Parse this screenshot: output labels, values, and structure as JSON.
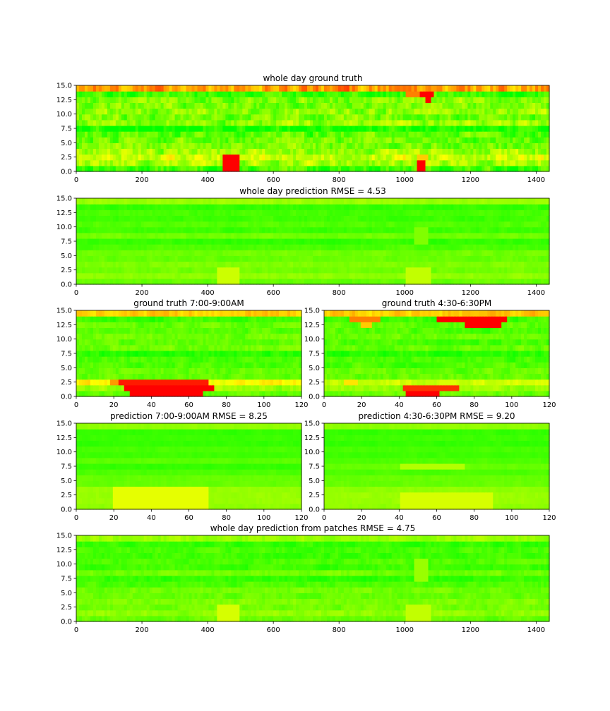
{
  "figure": {
    "background": "#ffffff"
  },
  "colormap": {
    "low": "#00ff00",
    "mid": "#ffff00",
    "high": "#ff0000"
  },
  "chart_data": [
    {
      "type": "heatmap",
      "title": "whole day ground truth",
      "xlim": [
        0,
        1440
      ],
      "ylim": [
        0,
        15
      ],
      "xticks": [
        "0",
        "200",
        "400",
        "600",
        "800",
        "1000",
        "1200",
        "1400"
      ],
      "yticks": [
        "0.0",
        "2.5",
        "5.0",
        "7.5",
        "10.0",
        "12.5",
        "15.0"
      ],
      "rows": 15,
      "base": [
        0.12,
        0.32,
        0.4,
        0.32,
        0.22,
        0.2,
        0.18,
        0.05,
        0.28,
        0.22,
        0.28,
        0.22,
        0.25,
        0.12,
        0.7,
        0.12
      ],
      "noise": 0.22,
      "hotspots": [
        {
          "x": [
            450,
            495
          ],
          "y": [
            0,
            3
          ],
          "v": 1.0
        },
        {
          "x": [
            1040,
            1060
          ],
          "y": [
            0,
            2
          ],
          "v": 1.0
        },
        {
          "x": [
            1035,
            1075
          ],
          "y": [
            2,
            3
          ],
          "v": 0.6
        },
        {
          "x": [
            1000,
            1080
          ],
          "y": [
            13,
            14
          ],
          "v": 0.75
        },
        {
          "x": [
            1045,
            1090
          ],
          "y": [
            13,
            14
          ],
          "v": 1.0
        },
        {
          "x": [
            1060,
            1080
          ],
          "y": [
            12,
            13
          ],
          "v": 1.0
        }
      ]
    },
    {
      "type": "heatmap",
      "title": "whole day prediction RMSE = 4.53",
      "xlim": [
        0,
        1440
      ],
      "ylim": [
        0,
        15
      ],
      "xticks": [
        "0",
        "200",
        "400",
        "600",
        "800",
        "1000",
        "1200",
        "1400"
      ],
      "yticks": [
        "0.0",
        "2.5",
        "5.0",
        "7.5",
        "10.0",
        "12.5",
        "15.0"
      ],
      "rows": 15,
      "base": [
        0.2,
        0.28,
        0.22,
        0.25,
        0.2,
        0.22,
        0.15,
        0.1,
        0.22,
        0.12,
        0.16,
        0.12,
        0.14,
        0.1,
        0.3,
        0.15
      ],
      "noise": 0.05,
      "hotspots": [
        {
          "x": [
            430,
            500
          ],
          "y": [
            0,
            3
          ],
          "v": 0.4
        },
        {
          "x": [
            1000,
            1080
          ],
          "y": [
            0,
            3
          ],
          "v": 0.38
        },
        {
          "x": [
            1030,
            1070
          ],
          "y": [
            7,
            10
          ],
          "v": 0.25
        }
      ]
    },
    {
      "type": "heatmap",
      "title": "ground truth 7:00-9:00AM",
      "xlim": [
        0,
        120
      ],
      "ylim": [
        0,
        15
      ],
      "xticks": [
        "0",
        "20",
        "40",
        "60",
        "80",
        "100",
        "120"
      ],
      "yticks": [
        "0.0",
        "2.5",
        "5.0",
        "7.5",
        "10.0",
        "12.5",
        "15.0"
      ],
      "rows": 15,
      "base": [
        0.2,
        0.3,
        0.5,
        0.2,
        0.2,
        0.15,
        0.15,
        0.08,
        0.22,
        0.18,
        0.22,
        0.18,
        0.2,
        0.12,
        0.6,
        0.15
      ],
      "noise": 0.1,
      "hotspots": [
        {
          "x": [
            28,
            68
          ],
          "y": [
            0,
            1
          ],
          "v": 1.0
        },
        {
          "x": [
            26,
            74
          ],
          "y": [
            1,
            2
          ],
          "v": 1.0
        },
        {
          "x": [
            22,
            70
          ],
          "y": [
            2,
            3
          ],
          "v": 0.95
        },
        {
          "x": [
            18,
            26
          ],
          "y": [
            2,
            3
          ],
          "v": 0.7
        }
      ]
    },
    {
      "type": "heatmap",
      "title": "ground truth 4:30-6:30PM",
      "xlim": [
        0,
        120
      ],
      "ylim": [
        0,
        15
      ],
      "xticks": [
        "0",
        "20",
        "40",
        "60",
        "80",
        "100",
        "120"
      ],
      "yticks": [
        "0.0",
        "2.5",
        "5.0",
        "7.5",
        "10.0",
        "12.5",
        "15.0"
      ],
      "rows": 15,
      "base": [
        0.2,
        0.3,
        0.4,
        0.2,
        0.2,
        0.15,
        0.15,
        0.08,
        0.2,
        0.15,
        0.2,
        0.15,
        0.18,
        0.12,
        0.6,
        0.15
      ],
      "noise": 0.1,
      "hotspots": [
        {
          "x": [
            44,
            62
          ],
          "y": [
            0,
            1
          ],
          "v": 1.0
        },
        {
          "x": [
            42,
            72
          ],
          "y": [
            1,
            2
          ],
          "v": 0.9
        },
        {
          "x": [
            10,
            18
          ],
          "y": [
            2,
            3
          ],
          "v": 0.55
        },
        {
          "x": [
            60,
            98
          ],
          "y": [
            13,
            14
          ],
          "v": 1.0
        },
        {
          "x": [
            75,
            95
          ],
          "y": [
            12,
            13
          ],
          "v": 1.0
        },
        {
          "x": [
            14,
            30
          ],
          "y": [
            13,
            14
          ],
          "v": 0.75
        },
        {
          "x": [
            20,
            26
          ],
          "y": [
            12,
            13
          ],
          "v": 0.6
        }
      ]
    },
    {
      "type": "heatmap",
      "title": "prediction 7:00-9:00AM RMSE = 8.25",
      "xlim": [
        0,
        120
      ],
      "ylim": [
        0,
        15
      ],
      "xticks": [
        "0",
        "20",
        "40",
        "60",
        "80",
        "100",
        "120"
      ],
      "yticks": [
        "0.0",
        "2.5",
        "5.0",
        "7.5",
        "10.0",
        "12.5",
        "15.0"
      ],
      "rows": 15,
      "base": [
        0.28,
        0.3,
        0.3,
        0.3,
        0.2,
        0.2,
        0.15,
        0.1,
        0.18,
        0.12,
        0.14,
        0.1,
        0.12,
        0.1,
        0.28,
        0.15
      ],
      "noise": 0.03,
      "hotspots": [
        {
          "x": [
            20,
            70
          ],
          "y": [
            0,
            4
          ],
          "v": 0.45
        }
      ]
    },
    {
      "type": "heatmap",
      "title": "prediction 4:30-6:30PM RMSE = 9.20",
      "xlim": [
        0,
        120
      ],
      "ylim": [
        0,
        15
      ],
      "xticks": [
        "0",
        "20",
        "40",
        "60",
        "80",
        "100",
        "120"
      ],
      "yticks": [
        "0.0",
        "2.5",
        "5.0",
        "7.5",
        "10.0",
        "12.5",
        "15.0"
      ],
      "rows": 15,
      "base": [
        0.28,
        0.3,
        0.3,
        0.28,
        0.2,
        0.2,
        0.15,
        0.2,
        0.15,
        0.12,
        0.14,
        0.1,
        0.12,
        0.1,
        0.28,
        0.15
      ],
      "noise": 0.03,
      "hotspots": [
        {
          "x": [
            40,
            90
          ],
          "y": [
            0,
            3
          ],
          "v": 0.42
        },
        {
          "x": [
            40,
            75
          ],
          "y": [
            7,
            8
          ],
          "v": 0.35
        }
      ]
    },
    {
      "type": "heatmap",
      "title": "whole day prediction from patches RMSE = 4.75",
      "xlim": [
        0,
        1440
      ],
      "ylim": [
        0,
        15
      ],
      "xticks": [
        "0",
        "200",
        "400",
        "600",
        "800",
        "1000",
        "1200",
        "1400"
      ],
      "yticks": [
        "0.0",
        "2.5",
        "5.0",
        "7.5",
        "10.0",
        "12.5",
        "15.0"
      ],
      "rows": 15,
      "base": [
        0.2,
        0.28,
        0.22,
        0.25,
        0.2,
        0.22,
        0.15,
        0.1,
        0.22,
        0.12,
        0.16,
        0.12,
        0.14,
        0.1,
        0.3,
        0.15
      ],
      "noise": 0.08,
      "hotspots": [
        {
          "x": [
            430,
            500
          ],
          "y": [
            0,
            3
          ],
          "v": 0.42
        },
        {
          "x": [
            1000,
            1080
          ],
          "y": [
            0,
            3
          ],
          "v": 0.38
        },
        {
          "x": [
            1030,
            1070
          ],
          "y": [
            7,
            11
          ],
          "v": 0.3
        }
      ]
    }
  ]
}
